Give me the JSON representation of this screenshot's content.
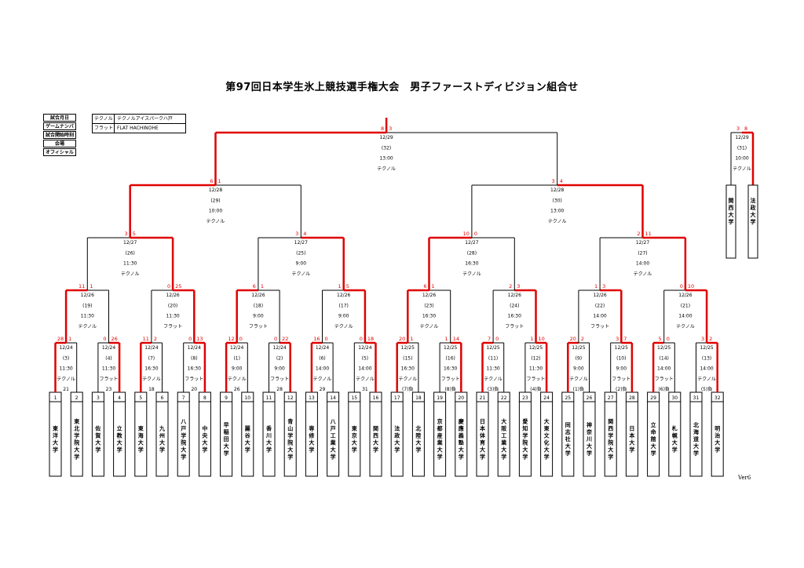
{
  "title": "第97回日本学生氷上競技選手権大会　男子ファーストディビジョン組合せ",
  "version": "Ver6",
  "legend": [
    "試合月日",
    "ゲームナンバー",
    "試合開始時刻",
    "会場",
    "オフィシャル"
  ],
  "venues": [
    {
      "key": "テクノル",
      "value": "テクノルアイスパークハ戸"
    },
    {
      "key": "フラット",
      "value": "FLAT HACHINOHE"
    }
  ],
  "colors": {
    "win": "#e00000",
    "line": "#000000"
  },
  "teams": [
    "東洋大学",
    "東北学院大学",
    "佐賀大学",
    "立教大学",
    "東海大学",
    "九州大学",
    "八戸学院大学",
    "中央大学",
    "早稲田大学",
    "麗谷大学",
    "香川大学",
    "青山学院大学",
    "専修大学",
    "八戸工業大学",
    "東京大学",
    "関西大学",
    "法政大学",
    "北陸大学",
    "京都産業大学",
    "慶應義塾大学",
    "日本体育大学",
    "大阪工業大学",
    "愛知学院大学",
    "大東文化大学",
    "同志社大学",
    "神奈川大学",
    "関西学院大学",
    "日本大学",
    "立命館大学",
    "札幌大学",
    "北海道大学",
    "明治大学"
  ],
  "r1": [
    {
      "d": "12/24",
      "g": "(3)",
      "t": "11:30",
      "v": "テクノル",
      "o": "21",
      "s": [
        "28",
        "1"
      ],
      "w": 0
    },
    {
      "d": "12/24",
      "g": "(4)",
      "t": "11:30",
      "v": "フラット",
      "o": "23",
      "s": [
        "0",
        "26"
      ],
      "w": 1
    },
    {
      "d": "12/24",
      "g": "(7)",
      "t": "16:30",
      "v": "テクノル",
      "o": "18",
      "s": [
        "11",
        "2"
      ],
      "w": 0
    },
    {
      "d": "12/24",
      "g": "(8)",
      "t": "16:30",
      "v": "フラット",
      "o": "20",
      "s": [
        "0",
        "13"
      ],
      "w": 1
    },
    {
      "d": "12/24",
      "g": "(1)",
      "t": "9:00",
      "v": "テクノル",
      "o": "26",
      "s": [
        "12",
        "0"
      ],
      "w": 0
    },
    {
      "d": "12/24",
      "g": "(2)",
      "t": "9:00",
      "v": "フラット",
      "o": "28",
      "s": [
        "0",
        "22"
      ],
      "w": 1
    },
    {
      "d": "12/24",
      "g": "(6)",
      "t": "14:00",
      "v": "テクノル",
      "o": "29",
      "s": [
        "16",
        "0"
      ],
      "w": 0
    },
    {
      "d": "12/24",
      "g": "(5)",
      "t": "14:00",
      "v": "テクノル",
      "o": "31",
      "s": [
        "0",
        "18"
      ],
      "w": 1
    },
    {
      "d": "12/25",
      "g": "(15)",
      "t": "16:30",
      "v": "テクノル",
      "o": "(7)負",
      "s": [
        "20",
        "1"
      ],
      "w": 0
    },
    {
      "d": "12/25",
      "g": "(16)",
      "t": "16:30",
      "v": "フラット",
      "o": "(8)負",
      "s": [
        "1",
        "14"
      ],
      "w": 1
    },
    {
      "d": "12/25",
      "g": "(11)",
      "t": "11:30",
      "v": "テクノル",
      "o": "(3)負",
      "s": [
        "7",
        "0"
      ],
      "w": 0
    },
    {
      "d": "12/25",
      "g": "(12)",
      "t": "11:30",
      "v": "フラット",
      "o": "(4)負",
      "s": [
        "1",
        "10"
      ],
      "w": 1
    },
    {
      "d": "12/25",
      "g": "(9)",
      "t": "9:00",
      "v": "テクノル",
      "o": "(1)負",
      "s": [
        "20",
        "2"
      ],
      "w": 0
    },
    {
      "d": "12/25",
      "g": "(10)",
      "t": "9:00",
      "v": "フラット",
      "o": "(2)負",
      "s": [
        "3",
        "7"
      ],
      "w": 1
    },
    {
      "d": "12/25",
      "g": "(14)",
      "t": "14:00",
      "v": "フラット",
      "o": "(6)負",
      "s": [
        "5",
        "0"
      ],
      "w": 0
    },
    {
      "d": "12/25",
      "g": "(13)",
      "t": "14:00",
      "v": "テクノル",
      "o": "(5)負",
      "s": [
        "3",
        "2"
      ],
      "w": 1
    }
  ],
  "r2": [
    {
      "d": "12/26",
      "g": "(19)",
      "t": "11:30",
      "v": "テクノル",
      "s": [
        "11",
        "1"
      ],
      "w": 0
    },
    {
      "d": "12/26",
      "g": "(20)",
      "t": "11:30",
      "v": "フラット",
      "s": [
        "0",
        "25"
      ],
      "w": 1
    },
    {
      "d": "12/26",
      "g": "(18)",
      "t": "9:00",
      "v": "フラット",
      "s": [
        "6",
        "1"
      ],
      "w": 0
    },
    {
      "d": "12/26",
      "g": "(17)",
      "t": "9:00",
      "v": "テクノル",
      "s": [
        "1",
        "5"
      ],
      "w": 1
    },
    {
      "d": "12/26",
      "g": "(23)",
      "t": "16:30",
      "v": "テクノル",
      "s": [
        "6",
        "1"
      ],
      "w": 0
    },
    {
      "d": "12/26",
      "g": "(24)",
      "t": "16:30",
      "v": "フラット",
      "s": [
        "2",
        "3"
      ],
      "w": 1
    },
    {
      "d": "12/26",
      "g": "(22)",
      "t": "14:00",
      "v": "フラット",
      "s": [
        "1",
        "3"
      ],
      "w": 1
    },
    {
      "d": "12/26",
      "g": "(21)",
      "t": "14:00",
      "v": "テクノル",
      "s": [
        "0",
        "10"
      ],
      "w": 1
    }
  ],
  "r3": [
    {
      "d": "12/27",
      "g": "(26)",
      "t": "11:30",
      "v": "テクノル",
      "s": [
        "3",
        "5"
      ],
      "w": 1
    },
    {
      "d": "12/27",
      "g": "(25)",
      "t": "9:00",
      "v": "テクノル",
      "s": [
        "3",
        "4"
      ],
      "w": 1
    },
    {
      "d": "12/27",
      "g": "(28)",
      "t": "16:30",
      "v": "テクノル",
      "s": [
        "10",
        "0"
      ],
      "w": 0
    },
    {
      "d": "12/27",
      "g": "(27)",
      "t": "14:00",
      "v": "テクノル",
      "s": [
        "2",
        "11"
      ],
      "w": 1
    }
  ],
  "r4": [
    {
      "d": "12/28",
      "g": "(29)",
      "t": "10:00",
      "v": "テクノル",
      "s": [
        "6",
        "1"
      ],
      "w": 0
    },
    {
      "d": "12/28",
      "g": "(30)",
      "t": "13:00",
      "v": "テクノル",
      "s": [
        "3",
        "4"
      ],
      "w": 1
    }
  ],
  "final": {
    "d": "12/29",
    "g": "(32)",
    "t": "13:00",
    "v": "テクノル",
    "s": [
      "8",
      "3"
    ],
    "w": 0
  },
  "third": {
    "d": "12/29",
    "g": "(31)",
    "t": "10:00",
    "v": "テクノル",
    "s": [
      "3",
      "8"
    ],
    "w": 1,
    "teams": [
      "関西大学",
      "法政大学"
    ]
  }
}
